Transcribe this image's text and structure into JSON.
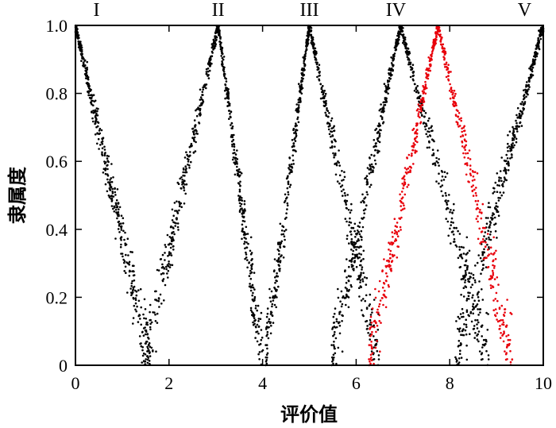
{
  "chart_data": {
    "type": "scatter",
    "xlabel": "评价值",
    "ylabel": "隶属度",
    "xlim": [
      0,
      10
    ],
    "ylim": [
      0,
      1
    ],
    "x_ticks": [
      "0",
      "2",
      "4",
      "6",
      "8",
      "10"
    ],
    "y_ticks": [
      "0",
      "0.2",
      "0.4",
      "0.6",
      "0.8",
      "1.0"
    ],
    "grid": false,
    "grade_labels": [
      {
        "label": "I",
        "x": 0.45
      },
      {
        "label": "II",
        "x": 3.05
      },
      {
        "label": "III",
        "x": 5.0
      },
      {
        "label": "IV",
        "x": 6.85
      },
      {
        "label": "V",
        "x": 9.6
      }
    ],
    "series": [
      {
        "color": "#000000",
        "shape": "cloud-bell",
        "centers": [
          0.0,
          3.05,
          5.0,
          6.95,
          10.0
        ],
        "left_width": [
          0.0,
          1.6,
          0.95,
          1.5,
          1.9
        ],
        "right_width": [
          1.6,
          0.95,
          1.5,
          1.9,
          0.0
        ],
        "points_per_center": [
          420,
          700,
          650,
          700,
          420
        ]
      },
      {
        "color": "#e8000b",
        "shape": "cloud-bell",
        "centers": [
          7.75
        ],
        "left_width": [
          1.5
        ],
        "right_width": [
          1.6
        ],
        "points_per_center": [
          650
        ]
      }
    ]
  }
}
